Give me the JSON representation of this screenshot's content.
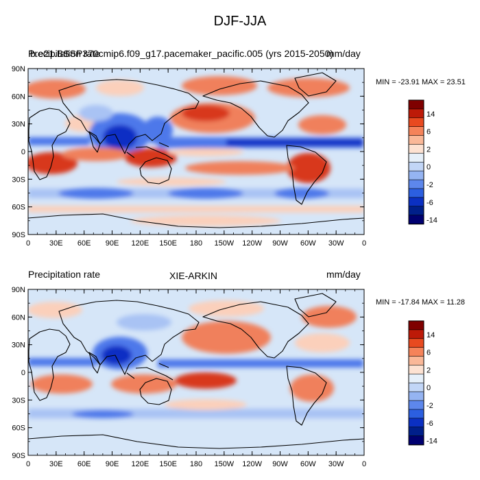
{
  "figure": {
    "title": "DJF-JJA"
  },
  "panels": [
    {
      "left_title": "Precipitation rate",
      "center_title": "b.e21.BSSP370cmip6.f09_g17.pacemaker_pacific.005 (yrs 2015-2050)",
      "right_title": "mm/day",
      "min_max": "MIN = -23.91 MAX =  23.51"
    },
    {
      "left_title": "Precipitation rate",
      "center_title": "XIE-ARKIN",
      "right_title": "mm/day",
      "min_max": "MIN = -17.84 MAX =  11.28"
    }
  ],
  "axes": {
    "lat_labels": [
      "90N",
      "60N",
      "30N",
      "0",
      "30S",
      "60S",
      "90S"
    ],
    "lon_labels": [
      "0",
      "30E",
      "60E",
      "90E",
      "120E",
      "150E",
      "180",
      "150W",
      "120W",
      "90W",
      "60W",
      "30W",
      "0"
    ]
  },
  "colorbar": {
    "labels": [
      "14",
      "6",
      "2",
      "0",
      "-2",
      "-6",
      "-14"
    ],
    "colors": [
      "#7f0000",
      "#bd1a08",
      "#e84a20",
      "#f5835a",
      "#fab898",
      "#fde2d2",
      "#e6f0fa",
      "#c2d6f7",
      "#95b4f2",
      "#5d87ec",
      "#2c5fe0",
      "#0b30c2",
      "#001f8a",
      "#000070"
    ]
  },
  "palette": {
    "ocean": "#d6e6f8",
    "wet_strong": "#0f2fc4",
    "wet": "#4d78ea",
    "wet_light": "#a9c3f4",
    "dry_light": "#fbd0bb",
    "dry": "#f0805b",
    "dry_strong": "#d8381a"
  }
}
